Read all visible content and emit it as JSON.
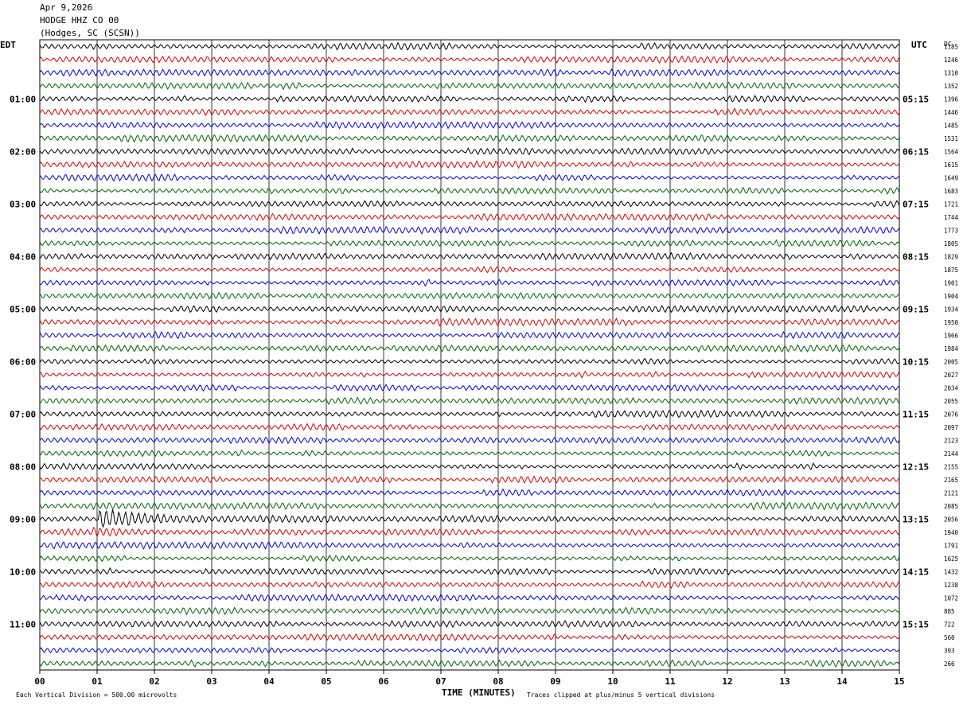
{
  "header": {
    "date": "Apr 9,2026",
    "station": "HODGE HHZ CO 00",
    "location": "(Hodges, SC (SCSN))"
  },
  "chart_data": {
    "type": "line",
    "title": "HODGE HHZ CO 00",
    "left_axis_label": "EDT",
    "right_axis_label": "UTC",
    "right_col_label": "DC",
    "xlabel": "TIME (MINUTES)",
    "xlim": [
      0,
      15
    ],
    "x_ticks": [
      "00",
      "01",
      "02",
      "03",
      "04",
      "05",
      "06",
      "07",
      "08",
      "09",
      "10",
      "11",
      "12",
      "13",
      "14",
      "15"
    ],
    "left_time_labels": [
      "01:00",
      "02:00",
      "03:00",
      "04:00",
      "05:00",
      "06:00",
      "07:00",
      "08:00",
      "09:00",
      "10:00",
      "11:00"
    ],
    "right_time_labels": [
      "05:15",
      "06:15",
      "07:15",
      "08:15",
      "09:15",
      "10:15",
      "11:15",
      "12:15",
      "13:15",
      "14:15",
      "15:15"
    ],
    "dc_offsets": [
      "1185",
      "1246",
      "1310",
      "1352",
      "1396",
      "1446",
      "1485",
      "1531",
      "1564",
      "1615",
      "1649",
      "1683",
      "1721",
      "1744",
      "1773",
      "1805",
      "1829",
      "1875",
      "1901",
      "1904",
      "1934",
      "1950",
      "1966",
      "1984",
      "2005",
      "2027",
      "2034",
      "2055",
      "2076",
      "2097",
      "2123",
      "2144",
      "2155",
      "2165",
      "2121",
      "2085",
      "2056",
      "1940",
      "1791",
      "1625",
      "1432",
      "1238",
      "1072",
      "885",
      "722",
      "560",
      "393",
      "266"
    ],
    "trace_colors": [
      "#000000",
      "#e00000",
      "#0000e0",
      "#006400"
    ],
    "num_traces": 48,
    "event_trace_index": 36,
    "event_start_minute": 1.0,
    "footer_left": "Each Vertical Division =  500.00 microvolts",
    "footer_right": "Traces clipped at plus/minus 5 vertical divisions"
  }
}
